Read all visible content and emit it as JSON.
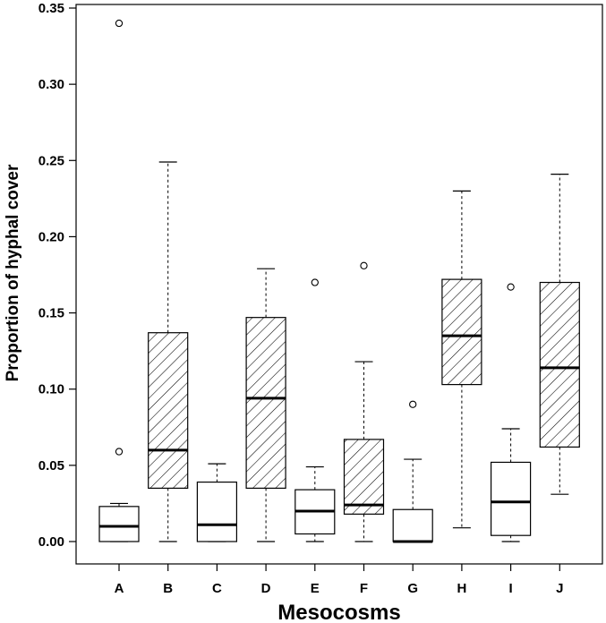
{
  "chart_data": {
    "type": "boxplot",
    "xlabel": "Mesocosms",
    "ylabel": "Proportion of hyphal cover",
    "ylim": [
      0,
      0.35
    ],
    "yticks": [
      "0.00",
      "0.05",
      "0.10",
      "0.15",
      "0.20",
      "0.25",
      "0.30",
      "0.35"
    ],
    "grid": false,
    "colors": {
      "stroke": "#000000",
      "fill": "#ffffff"
    },
    "categories": [
      "A",
      "B",
      "C",
      "D",
      "E",
      "F",
      "G",
      "H",
      "I",
      "J"
    ],
    "boxes": [
      {
        "category": "A",
        "whisker_low": 0.0,
        "q1": 0.0,
        "median": 0.01,
        "q3": 0.023,
        "whisker_high": 0.025,
        "outliers": [
          0.34,
          0.059
        ],
        "hatched": false
      },
      {
        "category": "B",
        "whisker_low": 0.0,
        "q1": 0.035,
        "median": 0.06,
        "q3": 0.137,
        "whisker_high": 0.249,
        "outliers": [],
        "hatched": true
      },
      {
        "category": "C",
        "whisker_low": 0.0,
        "q1": 0.0,
        "median": 0.011,
        "q3": 0.039,
        "whisker_high": 0.051,
        "outliers": [],
        "hatched": false
      },
      {
        "category": "D",
        "whisker_low": 0.0,
        "q1": 0.035,
        "median": 0.094,
        "q3": 0.147,
        "whisker_high": 0.179,
        "outliers": [],
        "hatched": true
      },
      {
        "category": "E",
        "whisker_low": 0.0,
        "q1": 0.005,
        "median": 0.02,
        "q3": 0.034,
        "whisker_high": 0.049,
        "outliers": [
          0.17
        ],
        "hatched": false
      },
      {
        "category": "F",
        "whisker_low": 0.0,
        "q1": 0.018,
        "median": 0.024,
        "q3": 0.067,
        "whisker_high": 0.118,
        "outliers": [
          0.181
        ],
        "hatched": true
      },
      {
        "category": "G",
        "whisker_low": 0.0,
        "q1": 0.0,
        "median": 0.0,
        "q3": 0.021,
        "whisker_high": 0.054,
        "outliers": [
          0.09
        ],
        "hatched": false
      },
      {
        "category": "H",
        "whisker_low": 0.009,
        "q1": 0.103,
        "median": 0.135,
        "q3": 0.172,
        "whisker_high": 0.23,
        "outliers": [],
        "hatched": true
      },
      {
        "category": "I",
        "whisker_low": 0.0,
        "q1": 0.004,
        "median": 0.026,
        "q3": 0.052,
        "whisker_high": 0.074,
        "outliers": [
          0.167
        ],
        "hatched": false
      },
      {
        "category": "J",
        "whisker_low": 0.031,
        "q1": 0.062,
        "median": 0.114,
        "q3": 0.17,
        "whisker_high": 0.241,
        "outliers": [],
        "hatched": true
      }
    ]
  }
}
